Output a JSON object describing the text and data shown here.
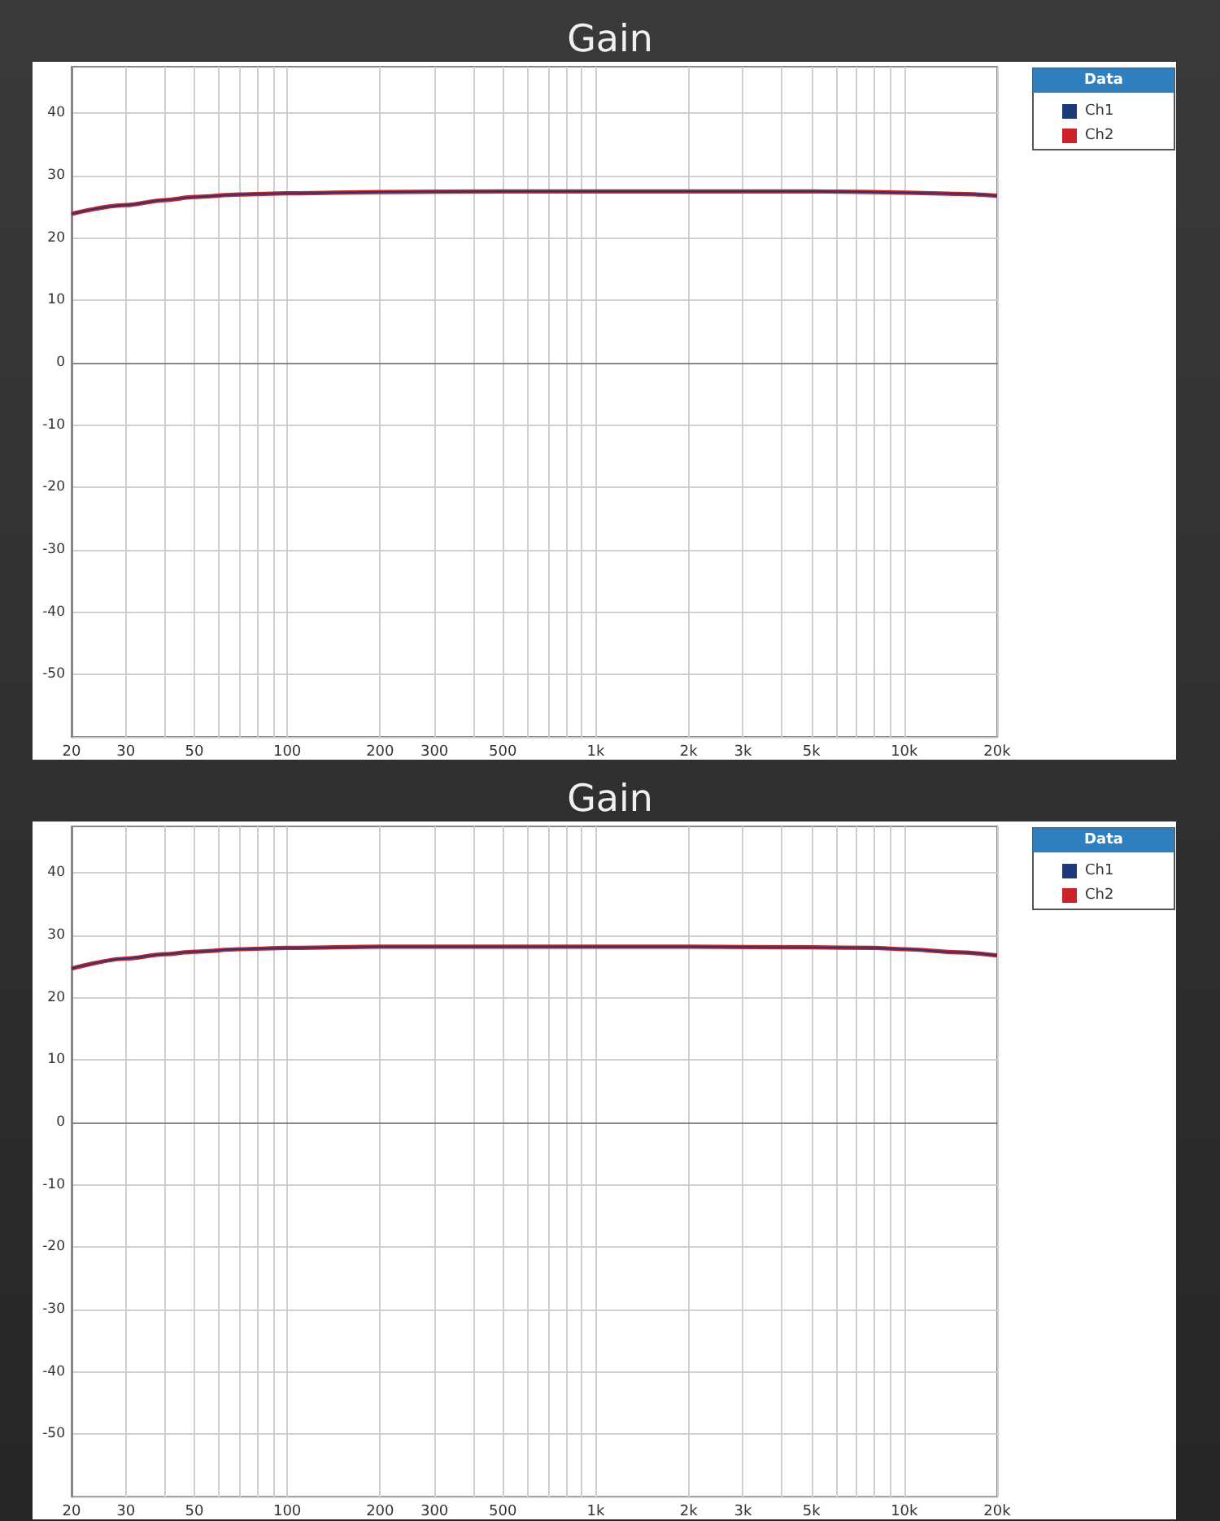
{
  "chart_data": [
    {
      "type": "line",
      "title": "Gain",
      "legend_title": "Data",
      "legend": "top right",
      "grid": true,
      "log": "x",
      "x": [
        20,
        30,
        40,
        50,
        70,
        100,
        200,
        500,
        1000,
        2000,
        5000,
        8000,
        10000,
        15000,
        20000
      ],
      "series": [
        {
          "name": "Ch1",
          "color": "#1f3a7a",
          "values": [
            23.9,
            25.3,
            26.1,
            26.6,
            27.0,
            27.2,
            27.4,
            27.5,
            27.5,
            27.5,
            27.5,
            27.4,
            27.3,
            27.1,
            26.8
          ]
        },
        {
          "name": "Ch2",
          "color": "#cc2229",
          "values": [
            23.9,
            25.3,
            26.1,
            26.6,
            27.0,
            27.2,
            27.4,
            27.5,
            27.5,
            27.5,
            27.5,
            27.4,
            27.3,
            27.1,
            26.8
          ]
        }
      ],
      "xlim": [
        20,
        20000
      ],
      "ylim": [
        -60,
        47.5
      ],
      "xticks": [
        20,
        30,
        {
          "value": 40,
          "label": null
        },
        50,
        {
          "value": 60,
          "label": null
        },
        {
          "value": 70,
          "label": null
        },
        {
          "value": 80,
          "label": null
        },
        {
          "value": 90,
          "label": null
        },
        100,
        200,
        300,
        {
          "value": 400,
          "label": null
        },
        500,
        {
          "value": 600,
          "label": null
        },
        {
          "value": 700,
          "label": null
        },
        {
          "value": 800,
          "label": null
        },
        {
          "value": 900,
          "label": null
        },
        {
          "value": 1000,
          "label": "1k"
        },
        {
          "value": 2000,
          "label": "2k"
        },
        {
          "value": 3000,
          "label": "3k"
        },
        {
          "value": 4000,
          "label": null
        },
        {
          "value": 5000,
          "label": "5k"
        },
        {
          "value": 6000,
          "label": null
        },
        {
          "value": 7000,
          "label": null
        },
        {
          "value": 8000,
          "label": null
        },
        {
          "value": 9000,
          "label": null
        },
        {
          "value": 10000,
          "label": "10k"
        },
        {
          "value": 20000,
          "label": "20k"
        }
      ],
      "yticks": [
        {
          "value": -60,
          "label": null
        },
        -50,
        -40,
        -30,
        -20,
        -10,
        0,
        10,
        20,
        30,
        40
      ]
    },
    {
      "type": "line",
      "title": "Gain",
      "legend_title": "Data",
      "legend": "top right",
      "grid": true,
      "log": "x",
      "x": [
        20,
        30,
        40,
        50,
        70,
        100,
        200,
        500,
        1000,
        2000,
        5000,
        8000,
        10000,
        15000,
        20000
      ],
      "series": [
        {
          "name": "Ch1",
          "color": "#1f3a7a",
          "values": [
            24.7,
            26.3,
            27.0,
            27.4,
            27.8,
            28.0,
            28.2,
            28.2,
            28.2,
            28.2,
            28.1,
            28.0,
            27.8,
            27.3,
            26.8
          ]
        },
        {
          "name": "Ch2",
          "color": "#cc2229",
          "values": [
            24.7,
            26.3,
            27.0,
            27.4,
            27.8,
            28.0,
            28.2,
            28.2,
            28.2,
            28.2,
            28.1,
            28.0,
            27.8,
            27.3,
            26.8
          ]
        }
      ],
      "xlim": [
        20,
        20000
      ],
      "ylim": [
        -60,
        47.5
      ],
      "xticks": [
        20,
        30,
        {
          "value": 40,
          "label": null
        },
        50,
        {
          "value": 60,
          "label": null
        },
        {
          "value": 70,
          "label": null
        },
        {
          "value": 80,
          "label": null
        },
        {
          "value": 90,
          "label": null
        },
        100,
        200,
        300,
        {
          "value": 400,
          "label": null
        },
        500,
        {
          "value": 600,
          "label": null
        },
        {
          "value": 700,
          "label": null
        },
        {
          "value": 800,
          "label": null
        },
        {
          "value": 900,
          "label": null
        },
        {
          "value": 1000,
          "label": "1k"
        },
        {
          "value": 2000,
          "label": "2k"
        },
        {
          "value": 3000,
          "label": "3k"
        },
        {
          "value": 4000,
          "label": null
        },
        {
          "value": 5000,
          "label": "5k"
        },
        {
          "value": 6000,
          "label": null
        },
        {
          "value": 7000,
          "label": null
        },
        {
          "value": 8000,
          "label": null
        },
        {
          "value": 9000,
          "label": null
        },
        {
          "value": 10000,
          "label": "10k"
        },
        {
          "value": 20000,
          "label": "20k"
        }
      ],
      "yticks": [
        {
          "value": -60,
          "label": null
        },
        -50,
        -40,
        -30,
        -20,
        -10,
        0,
        10,
        20,
        30,
        40
      ]
    }
  ]
}
